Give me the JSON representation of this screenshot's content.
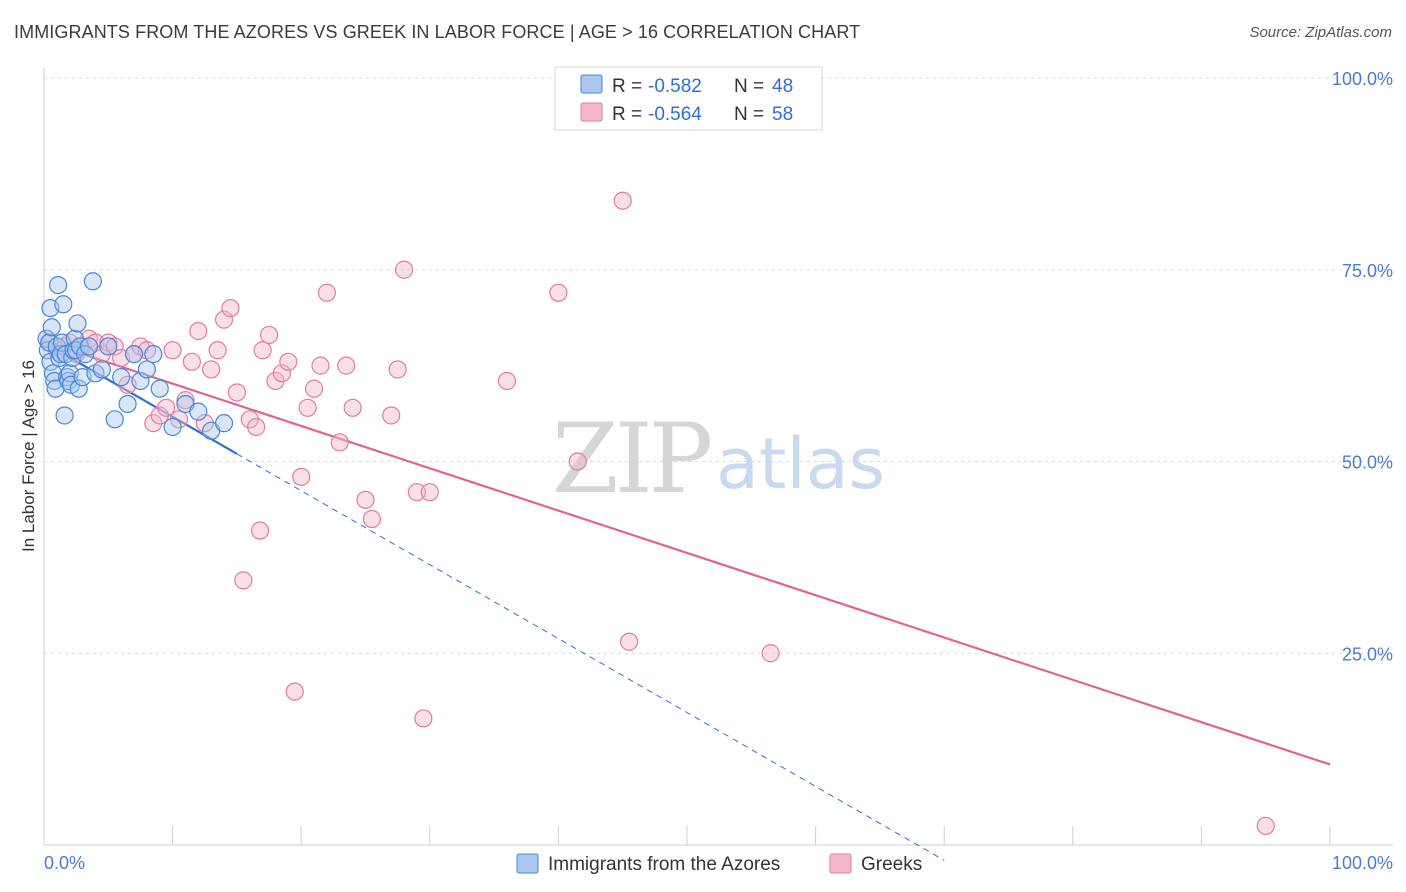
{
  "header": {
    "title": "IMMIGRANTS FROM THE AZORES VS GREEK IN LABOR FORCE | AGE > 16 CORRELATION CHART",
    "source": "Source: ZipAtlas.com"
  },
  "watermark": {
    "zip": "ZIP",
    "atlas": "atlas"
  },
  "colors": {
    "blue_fill": "#a9c8f0",
    "blue_stroke": "#4a86d8",
    "blue_line": "#2f6fd0",
    "pink_fill": "#f5b8cb",
    "pink_stroke": "#e27ba0",
    "pink_line": "#e0648f",
    "grid": "#d9d9d9",
    "axis_text": "#4a7cc9"
  },
  "legend": {
    "rows": [
      {
        "r_label": "R =",
        "r_value": "-0.582",
        "n_label": "N =",
        "n_value": "48"
      },
      {
        "r_label": "R =",
        "r_value": "-0.564",
        "n_label": "N =",
        "n_value": "58"
      }
    ]
  },
  "chart_data": {
    "type": "scatter",
    "ylabel": "In Labor Force | Age > 16",
    "xlim": [
      0,
      100
    ],
    "ylim": [
      0,
      100
    ],
    "x_tick_labels": [
      "0.0%",
      "100.0%"
    ],
    "y_ticks": [
      25,
      50,
      75,
      100
    ],
    "y_tick_labels": [
      "25.0%",
      "50.0%",
      "75.0%",
      "100.0%"
    ],
    "grid": true,
    "series": [
      {
        "name": "Immigrants from the Azores",
        "color": "blue",
        "r": -0.582,
        "n": 48,
        "trend": {
          "solid": [
            [
              0.3,
              65.2
            ],
            [
              15,
              51
            ]
          ],
          "dashed": [
            [
              15,
              51
            ],
            [
              70,
              -2
            ]
          ]
        },
        "points": [
          [
            0.2,
            66.0
          ],
          [
            0.3,
            64.5
          ],
          [
            0.4,
            65.5
          ],
          [
            0.5,
            70.0
          ],
          [
            0.5,
            63.0
          ],
          [
            0.6,
            67.5
          ],
          [
            0.7,
            61.5
          ],
          [
            0.8,
            60.5
          ],
          [
            0.9,
            59.5
          ],
          [
            1.0,
            65.0
          ],
          [
            1.1,
            73.0
          ],
          [
            1.2,
            63.5
          ],
          [
            1.3,
            64.0
          ],
          [
            1.4,
            65.5
          ],
          [
            1.5,
            70.5
          ],
          [
            1.6,
            56.0
          ],
          [
            1.7,
            64.0
          ],
          [
            1.8,
            61.0
          ],
          [
            1.9,
            60.5
          ],
          [
            2.0,
            61.5
          ],
          [
            2.1,
            60.0
          ],
          [
            2.2,
            63.5
          ],
          [
            2.3,
            64.5
          ],
          [
            2.4,
            66.0
          ],
          [
            2.5,
            64.5
          ],
          [
            2.6,
            68.0
          ],
          [
            2.7,
            59.5
          ],
          [
            2.8,
            65.0
          ],
          [
            3.0,
            61.0
          ],
          [
            3.2,
            64.0
          ],
          [
            3.5,
            65.0
          ],
          [
            3.8,
            73.5
          ],
          [
            4.0,
            61.5
          ],
          [
            4.5,
            62.0
          ],
          [
            5.0,
            65.0
          ],
          [
            5.5,
            55.5
          ],
          [
            6.0,
            61.0
          ],
          [
            6.5,
            57.5
          ],
          [
            7.0,
            64.0
          ],
          [
            7.5,
            60.5
          ],
          [
            8.0,
            62.0
          ],
          [
            8.5,
            64.0
          ],
          [
            9.0,
            59.5
          ],
          [
            10.0,
            54.5
          ],
          [
            11.0,
            57.5
          ],
          [
            12.0,
            56.5
          ],
          [
            13.0,
            54.0
          ],
          [
            14.0,
            55.0
          ]
        ]
      },
      {
        "name": "Greeks",
        "color": "pink",
        "r": -0.564,
        "n": 58,
        "trend": {
          "solid": [
            [
              0.3,
              65.5
            ],
            [
              100,
              10.5
            ]
          ]
        },
        "points": [
          [
            0.5,
            65.5
          ],
          [
            1.0,
            64.5
          ],
          [
            1.5,
            65.0
          ],
          [
            2.0,
            65.5
          ],
          [
            2.5,
            64.0
          ],
          [
            3.0,
            65.0
          ],
          [
            3.5,
            66.0
          ],
          [
            4.0,
            65.5
          ],
          [
            4.5,
            64.0
          ],
          [
            5.0,
            65.5
          ],
          [
            5.5,
            65.0
          ],
          [
            6.0,
            63.5
          ],
          [
            6.5,
            60.0
          ],
          [
            7.0,
            64.0
          ],
          [
            7.5,
            65.0
          ],
          [
            8.0,
            64.5
          ],
          [
            8.5,
            55.0
          ],
          [
            9.0,
            56.0
          ],
          [
            9.5,
            57.0
          ],
          [
            10.0,
            64.5
          ],
          [
            10.5,
            55.5
          ],
          [
            11.0,
            58.0
          ],
          [
            11.5,
            63.0
          ],
          [
            12.0,
            67.0
          ],
          [
            12.5,
            55.0
          ],
          [
            13.0,
            62.0
          ],
          [
            13.5,
            64.5
          ],
          [
            14.0,
            68.5
          ],
          [
            14.5,
            70.0
          ],
          [
            15.0,
            59.0
          ],
          [
            15.5,
            34.5
          ],
          [
            16.0,
            55.5
          ],
          [
            16.5,
            54.5
          ],
          [
            16.8,
            41.0
          ],
          [
            17.0,
            64.5
          ],
          [
            17.5,
            66.5
          ],
          [
            18.0,
            60.5
          ],
          [
            18.5,
            61.5
          ],
          [
            19.0,
            63.0
          ],
          [
            19.5,
            20.0
          ],
          [
            20.0,
            48.0
          ],
          [
            20.5,
            57.0
          ],
          [
            21.0,
            59.5
          ],
          [
            21.5,
            62.5
          ],
          [
            22.0,
            72.0
          ],
          [
            23.0,
            52.5
          ],
          [
            23.5,
            62.5
          ],
          [
            24.0,
            57.0
          ],
          [
            25.0,
            45.0
          ],
          [
            25.5,
            42.5
          ],
          [
            27.0,
            56.0
          ],
          [
            27.5,
            62.0
          ],
          [
            28.0,
            75.0
          ],
          [
            29.0,
            46.0
          ],
          [
            29.5,
            16.5
          ],
          [
            30.0,
            46.0
          ],
          [
            36.0,
            60.5
          ],
          [
            40.0,
            72.0
          ]
        ],
        "extra_points": [
          [
            41.5,
            50.0
          ],
          [
            45.0,
            84.0
          ],
          [
            45.5,
            26.5
          ],
          [
            56.5,
            25.0
          ],
          [
            95.0,
            2.5
          ]
        ]
      }
    ]
  },
  "bottom_legend": {
    "items": [
      {
        "label": "Immigrants from the Azores"
      },
      {
        "label": "Greeks"
      }
    ]
  }
}
